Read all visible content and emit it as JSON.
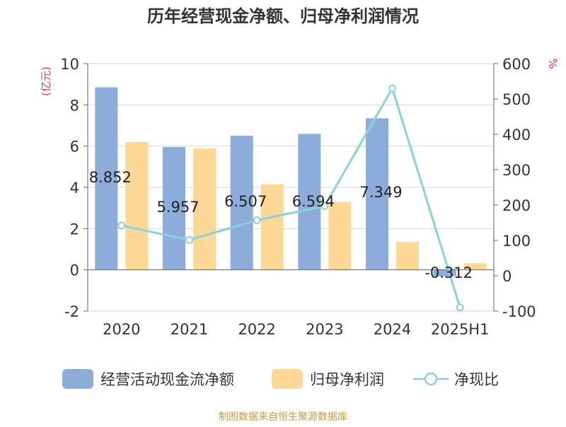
{
  "chart_data": {
    "type": "bar",
    "title": "历年经营现金净额、归母净利润情况",
    "categories": [
      "2020",
      "2021",
      "2022",
      "2023",
      "2024",
      "2025H1"
    ],
    "y_left": {
      "unit": "(亿元)",
      "ylim": [
        -2,
        10
      ],
      "ticks": [
        "-2",
        "0",
        "2",
        "4",
        "6",
        "8",
        "10"
      ]
    },
    "y_right": {
      "unit": "%",
      "ylim": [
        -100,
        600
      ],
      "ticks": [
        "-100",
        "0",
        "100",
        "200",
        "300",
        "400",
        "500",
        "600"
      ]
    },
    "series": [
      {
        "name": "经营活动现金流净额",
        "type": "bar",
        "axis": "left",
        "color": "#8eacd9",
        "values": [
          8.852,
          5.957,
          6.507,
          6.594,
          7.349,
          -0.312
        ],
        "labels": [
          "8.852",
          "5.957",
          "6.507",
          "6.594",
          "7.349",
          "-0.312"
        ]
      },
      {
        "name": "归母净利润",
        "type": "bar",
        "axis": "left",
        "color": "#fdd795",
        "values": [
          6.2,
          5.9,
          4.15,
          3.3,
          1.35,
          0.32
        ]
      },
      {
        "name": "净现比",
        "type": "line",
        "axis": "right",
        "color": "#87d3d9",
        "values": [
          142,
          101,
          157,
          197,
          530,
          -90
        ]
      }
    ],
    "grid": true,
    "legend_position": "bottom"
  },
  "source": "制图数据来自恒生聚源数据库",
  "colors": {
    "axis_text": "#333333",
    "unit_red": "#e23b3b",
    "source": "#c99a3c",
    "title": "#333333"
  }
}
